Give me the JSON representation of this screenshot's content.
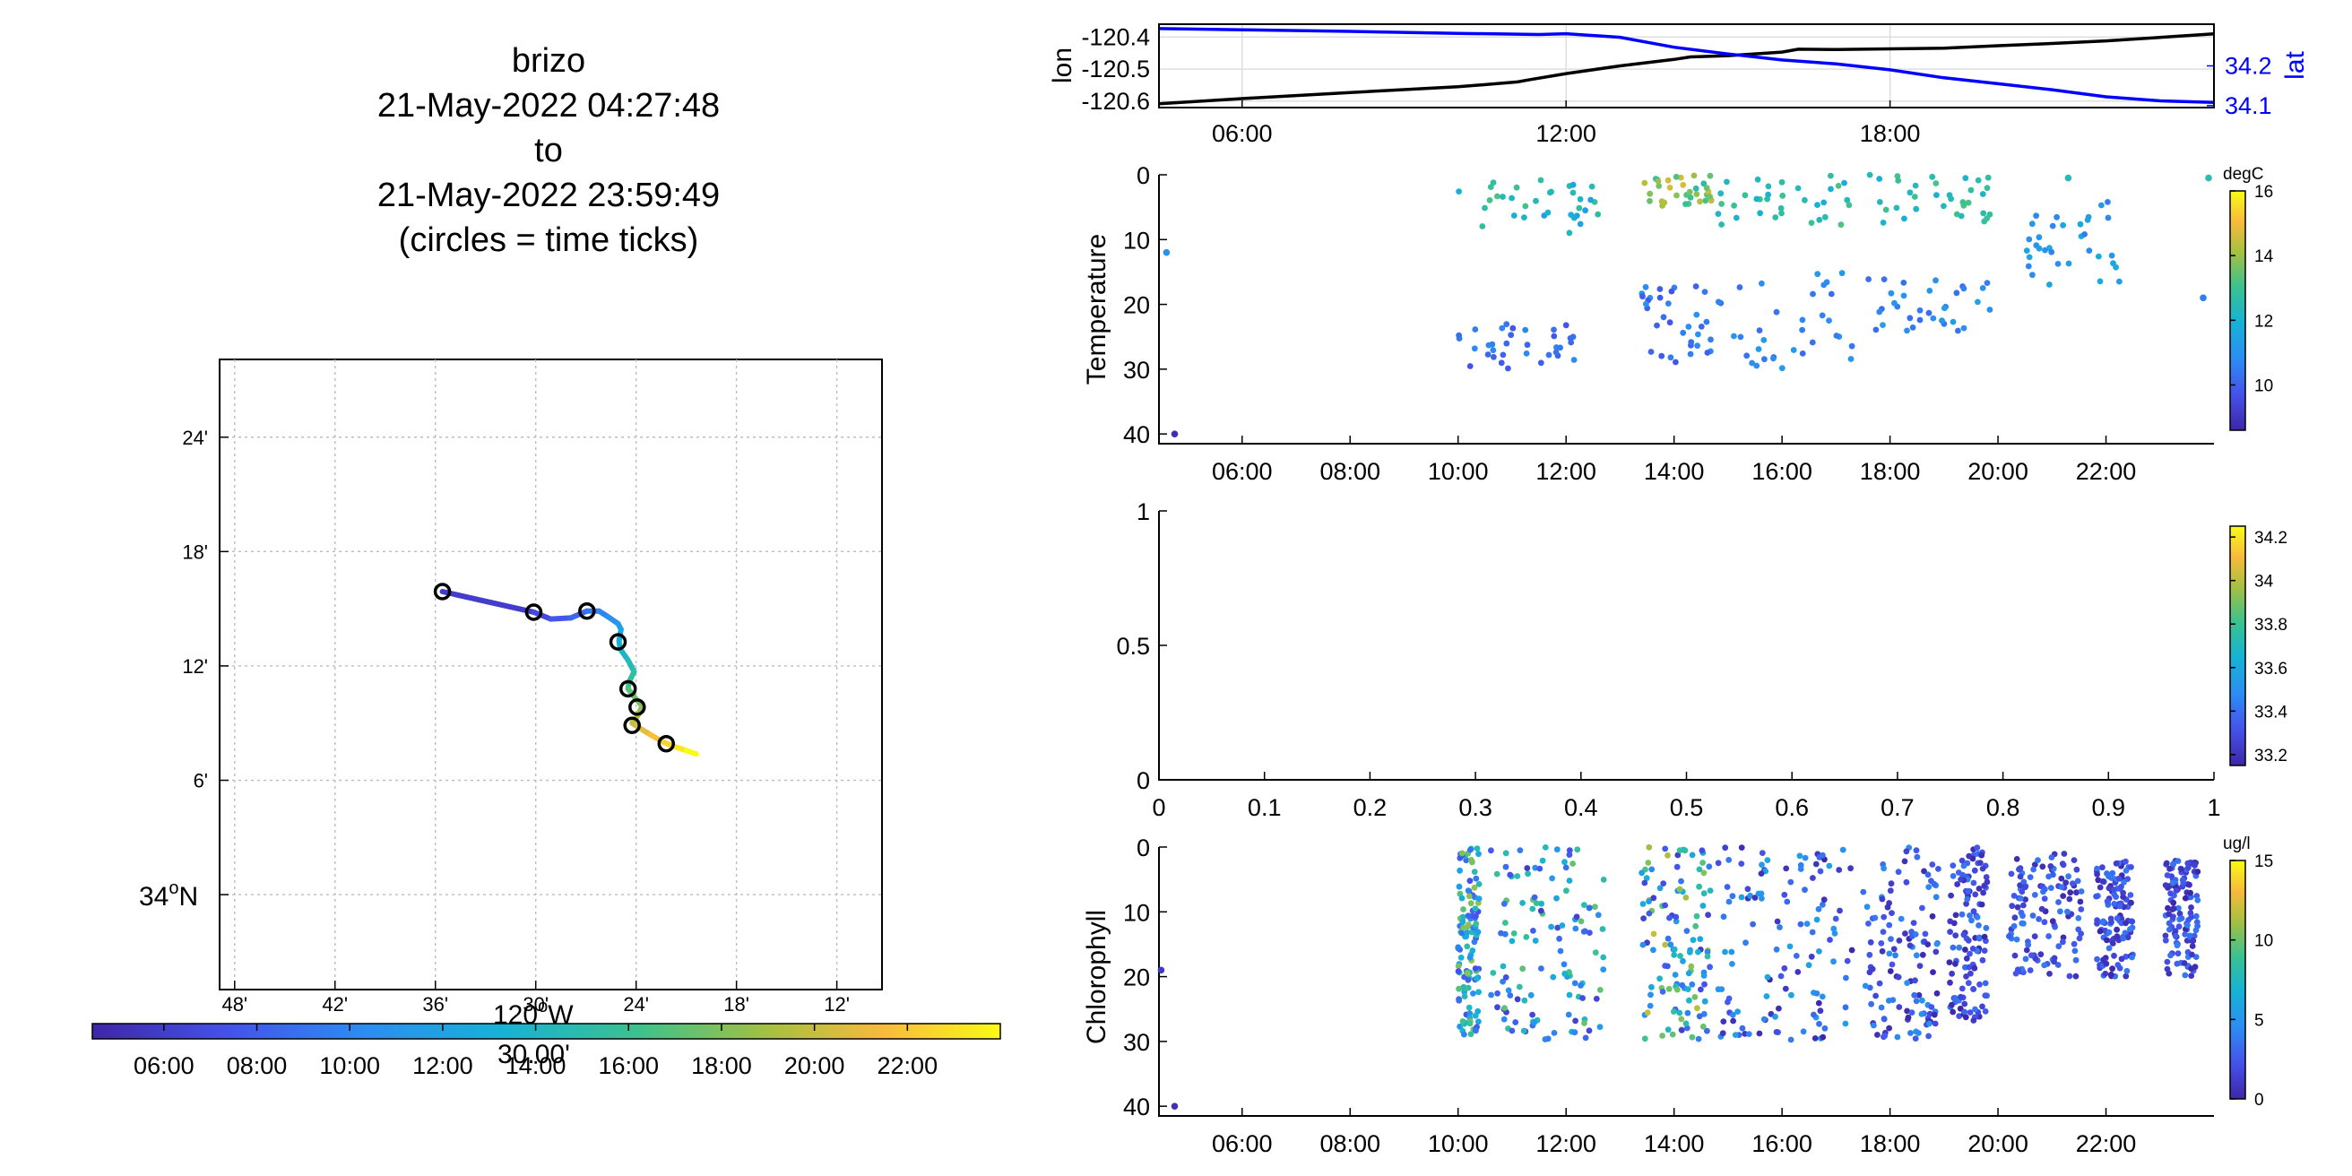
{
  "figure": {
    "title_lines": [
      "brizo",
      "21-May-2022 04:27:48",
      "to",
      "21-May-2022 23:59:49",
      "(circles = time ticks)"
    ]
  },
  "chart_data": [
    {
      "id": "track-map",
      "type": "scatter",
      "x_ticks": [
        "48'",
        "42'",
        "36'",
        "30'",
        "24'",
        "18'",
        "12'"
      ],
      "x_tick_values": [
        -120.8,
        -120.7,
        -120.6,
        -120.5,
        -120.4,
        -120.3,
        -120.2
      ],
      "x_center_label": {
        "deg": "120",
        "sup": "o",
        "hem": "W",
        "min": "30.00'"
      },
      "y_ticks": [
        "24'",
        "18'",
        "12'",
        "6'"
      ],
      "y_tick_values": [
        34.4,
        34.3,
        34.2,
        34.1
      ],
      "y_base_label": {
        "deg": "34",
        "sup": "o",
        "hem": "N"
      },
      "y_base_value": 34.0,
      "xlim": [
        -120.815,
        -120.155
      ],
      "ylim": [
        33.917,
        34.468
      ],
      "grid": true,
      "track": [
        [
          -120.593,
          34.265
        ],
        [
          -120.502,
          34.247
        ],
        [
          -120.485,
          34.241
        ],
        [
          -120.465,
          34.242
        ],
        [
          -120.449,
          34.248
        ],
        [
          -120.437,
          34.248
        ],
        [
          -120.428,
          34.243
        ],
        [
          -120.418,
          34.237
        ],
        [
          -120.415,
          34.232
        ],
        [
          -120.417,
          34.222
        ],
        [
          -120.416,
          34.215
        ],
        [
          -120.408,
          34.205
        ],
        [
          -120.402,
          34.195
        ],
        [
          -120.407,
          34.186
        ],
        [
          -120.408,
          34.18
        ],
        [
          -120.401,
          34.172
        ],
        [
          -120.394,
          34.165
        ],
        [
          -120.398,
          34.157
        ],
        [
          -120.404,
          34.15
        ],
        [
          -120.399,
          34.147
        ],
        [
          -120.386,
          34.14
        ],
        [
          -120.372,
          34.133
        ],
        [
          -120.36,
          34.129
        ],
        [
          -120.35,
          34.126
        ],
        [
          -120.34,
          34.123
        ]
      ],
      "time_tick_circles": [
        [
          -120.593,
          34.265
        ],
        [
          -120.502,
          34.247
        ],
        [
          -120.449,
          34.248
        ],
        [
          -120.418,
          34.221
        ],
        [
          -120.408,
          34.18
        ],
        [
          -120.399,
          34.164
        ],
        [
          -120.404,
          34.148
        ],
        [
          -120.37,
          34.132
        ]
      ],
      "colormap": "parula",
      "colorbar_ticks": [
        "06:00",
        "08:00",
        "10:00",
        "12:00",
        "14:00",
        "16:00",
        "18:00",
        "20:00",
        "22:00"
      ],
      "colorbar_tick_values": [
        6,
        8,
        10,
        12,
        14,
        16,
        18,
        20,
        22
      ],
      "colorbar_range": [
        4.46,
        24.0
      ]
    },
    {
      "id": "lon-lat",
      "type": "line",
      "ylabel": "lon",
      "y2label": "lat",
      "xlim": [
        4.46,
        24.0
      ],
      "x_ticks": [
        "06:00",
        "12:00",
        "18:00"
      ],
      "x_tick_values": [
        6,
        12,
        18
      ],
      "ylim": [
        -120.62,
        -120.36
      ],
      "y_ticks": [
        "-120.4",
        "-120.5",
        "-120.6"
      ],
      "y_tick_values": [
        -120.4,
        -120.5,
        -120.6
      ],
      "y2lim": [
        34.095,
        34.305
      ],
      "y2_ticks": [
        "34.2",
        "34.1"
      ],
      "y2_tick_values": [
        34.2,
        34.1
      ],
      "grid": true,
      "series": [
        {
          "color": "#000000",
          "x": [
            4.46,
            6,
            8,
            10,
            11.1,
            11.3,
            12,
            13,
            14,
            14.3,
            15,
            16,
            16.3,
            17,
            18,
            19,
            20,
            21,
            22,
            23,
            24
          ],
          "y": [
            -120.608,
            -120.592,
            -120.573,
            -120.555,
            -120.54,
            -120.534,
            -120.514,
            -120.49,
            -120.47,
            -120.462,
            -120.458,
            -120.447,
            -120.438,
            -120.439,
            -120.437,
            -120.435,
            -120.427,
            -120.42,
            -120.412,
            -120.401,
            -120.39
          ]
        },
        {
          "color": "#0000ff",
          "axis": "right",
          "x": [
            4.46,
            6,
            8,
            10,
            11.5,
            12,
            13,
            14,
            15,
            16,
            17,
            18,
            19,
            20,
            21,
            22,
            23,
            24
          ],
          "y": [
            34.294,
            34.291,
            34.287,
            34.282,
            34.279,
            34.281,
            34.272,
            34.247,
            34.23,
            34.215,
            34.205,
            34.19,
            34.17,
            34.155,
            34.14,
            34.122,
            34.112,
            34.108
          ]
        }
      ]
    },
    {
      "id": "temperature",
      "type": "scatter",
      "ylabel": "Temperature",
      "xlim": [
        4.46,
        24.0
      ],
      "x_ticks": [
        "06:00",
        "08:00",
        "10:00",
        "12:00",
        "14:00",
        "16:00",
        "18:00",
        "20:00",
        "22:00"
      ],
      "x_tick_values": [
        6,
        8,
        10,
        12,
        14,
        16,
        18,
        20,
        22
      ],
      "ylim": [
        0,
        41.5
      ],
      "y_ticks": [
        "0",
        "10",
        "20",
        "30",
        "40"
      ],
      "y_tick_values": [
        0,
        10,
        20,
        30,
        40
      ],
      "y_reversed": true,
      "colorbar_label": "degC",
      "colorbar_ticks": [
        "16",
        "14",
        "12",
        "10"
      ],
      "colorbar_tick_values": [
        16,
        14,
        12,
        10
      ],
      "colorbar_range": [
        8.6,
        16
      ],
      "clusters": [
        {
          "t": [
            10.0,
            12.6
          ],
          "z": [
            0,
            9
          ],
          "c": [
            11.3,
            13.4
          ]
        },
        {
          "t": [
            10.0,
            12.6
          ],
          "z": [
            23,
            30
          ],
          "c": [
            9.6,
            10.8
          ]
        },
        {
          "t": [
            13.4,
            14.7
          ],
          "z": [
            0,
            5
          ],
          "c": [
            12.5,
            14.8
          ]
        },
        {
          "t": [
            13.4,
            14.7
          ],
          "z": [
            17,
            30
          ],
          "c": [
            9.7,
            11.0
          ]
        },
        {
          "t": [
            14.8,
            17.3
          ],
          "z": [
            0,
            8
          ],
          "c": [
            11.8,
            13.3
          ]
        },
        {
          "t": [
            14.8,
            17.3
          ],
          "z": [
            15,
            30
          ],
          "c": [
            10.0,
            11.3
          ]
        },
        {
          "t": [
            17.6,
            20.0
          ],
          "z": [
            0,
            8
          ],
          "c": [
            11.7,
            13.2
          ]
        },
        {
          "t": [
            17.6,
            20.0
          ],
          "z": [
            16,
            25
          ],
          "c": [
            10.2,
            11.5
          ]
        },
        {
          "t": [
            20.5,
            22.3
          ],
          "z": [
            4,
            17
          ],
          "c": [
            10.5,
            11.8
          ]
        }
      ],
      "points": [
        {
          "t": 4.6,
          "z": 12,
          "c": 11.0
        },
        {
          "t": 4.75,
          "z": 40,
          "c": 8.8
        },
        {
          "t": 21.3,
          "z": 0.5,
          "c": 12.4
        },
        {
          "t": 23.8,
          "z": 19,
          "c": 10.5
        },
        {
          "t": 23.9,
          "z": 0.5,
          "c": 12.6
        }
      ]
    },
    {
      "id": "salinity",
      "type": "scatter",
      "xlim": [
        0,
        1
      ],
      "x_ticks": [
        "0",
        "0.1",
        "0.2",
        "0.3",
        "0.4",
        "0.5",
        "0.6",
        "0.7",
        "0.8",
        "0.9",
        "1"
      ],
      "x_tick_values": [
        0,
        0.1,
        0.2,
        0.3,
        0.4,
        0.5,
        0.6,
        0.7,
        0.8,
        0.9,
        1
      ],
      "ylim": [
        0,
        1
      ],
      "y_ticks": [
        "1",
        "0.5",
        "0"
      ],
      "y_tick_values": [
        1,
        0.5,
        0
      ],
      "colorbar_ticks": [
        "34.2",
        "34",
        "33.8",
        "33.6",
        "33.4",
        "33.2"
      ],
      "colorbar_tick_values": [
        34.2,
        34.0,
        33.8,
        33.6,
        33.4,
        33.2
      ],
      "colorbar_range": [
        33.15,
        34.25
      ]
    },
    {
      "id": "chlorophyll",
      "type": "scatter",
      "ylabel": "Chlorophyll",
      "xlim": [
        4.46,
        24.0
      ],
      "x_ticks": [
        "06:00",
        "08:00",
        "10:00",
        "12:00",
        "14:00",
        "16:00",
        "18:00",
        "20:00",
        "22:00"
      ],
      "x_tick_values": [
        6,
        8,
        10,
        12,
        14,
        16,
        18,
        20,
        22
      ],
      "ylim": [
        0,
        41.5
      ],
      "y_ticks": [
        "0",
        "10",
        "20",
        "30",
        "40"
      ],
      "y_tick_values": [
        0,
        10,
        20,
        30,
        40
      ],
      "y_reversed": true,
      "colorbar_label": "ug/l",
      "colorbar_ticks": [
        "15",
        "10",
        "5",
        "0"
      ],
      "colorbar_tick_values": [
        15,
        10,
        5,
        0
      ],
      "colorbar_range": [
        0,
        15
      ],
      "clusters": [
        {
          "t": [
            10.0,
            10.4
          ],
          "z": [
            0,
            30
          ],
          "c": [
            2,
            11
          ]
        },
        {
          "t": [
            10.6,
            12.7
          ],
          "z": [
            0,
            30
          ],
          "c": [
            1,
            10
          ]
        },
        {
          "t": [
            13.4,
            14.7
          ],
          "z": [
            0,
            30
          ],
          "c": [
            1,
            12
          ]
        },
        {
          "t": [
            14.8,
            17.3
          ],
          "z": [
            0,
            30
          ],
          "c": [
            0,
            6
          ]
        },
        {
          "t": [
            17.5,
            18.9
          ],
          "z": [
            0,
            30
          ],
          "c": [
            0,
            5
          ]
        },
        {
          "t": [
            19.1,
            19.8
          ],
          "z": [
            0,
            27
          ],
          "c": [
            0,
            4
          ]
        },
        {
          "t": [
            20.2,
            21.6
          ],
          "z": [
            1,
            20
          ],
          "c": [
            0,
            4
          ]
        },
        {
          "t": [
            21.8,
            22.5
          ],
          "z": [
            2,
            20
          ],
          "c": [
            0,
            4
          ]
        },
        {
          "t": [
            23.1,
            23.7
          ],
          "z": [
            2,
            20
          ],
          "c": [
            0,
            4
          ]
        }
      ],
      "points": [
        {
          "t": 4.5,
          "z": 19,
          "c": 1.0
        },
        {
          "t": 4.75,
          "z": 40,
          "c": 0.5
        }
      ]
    }
  ]
}
